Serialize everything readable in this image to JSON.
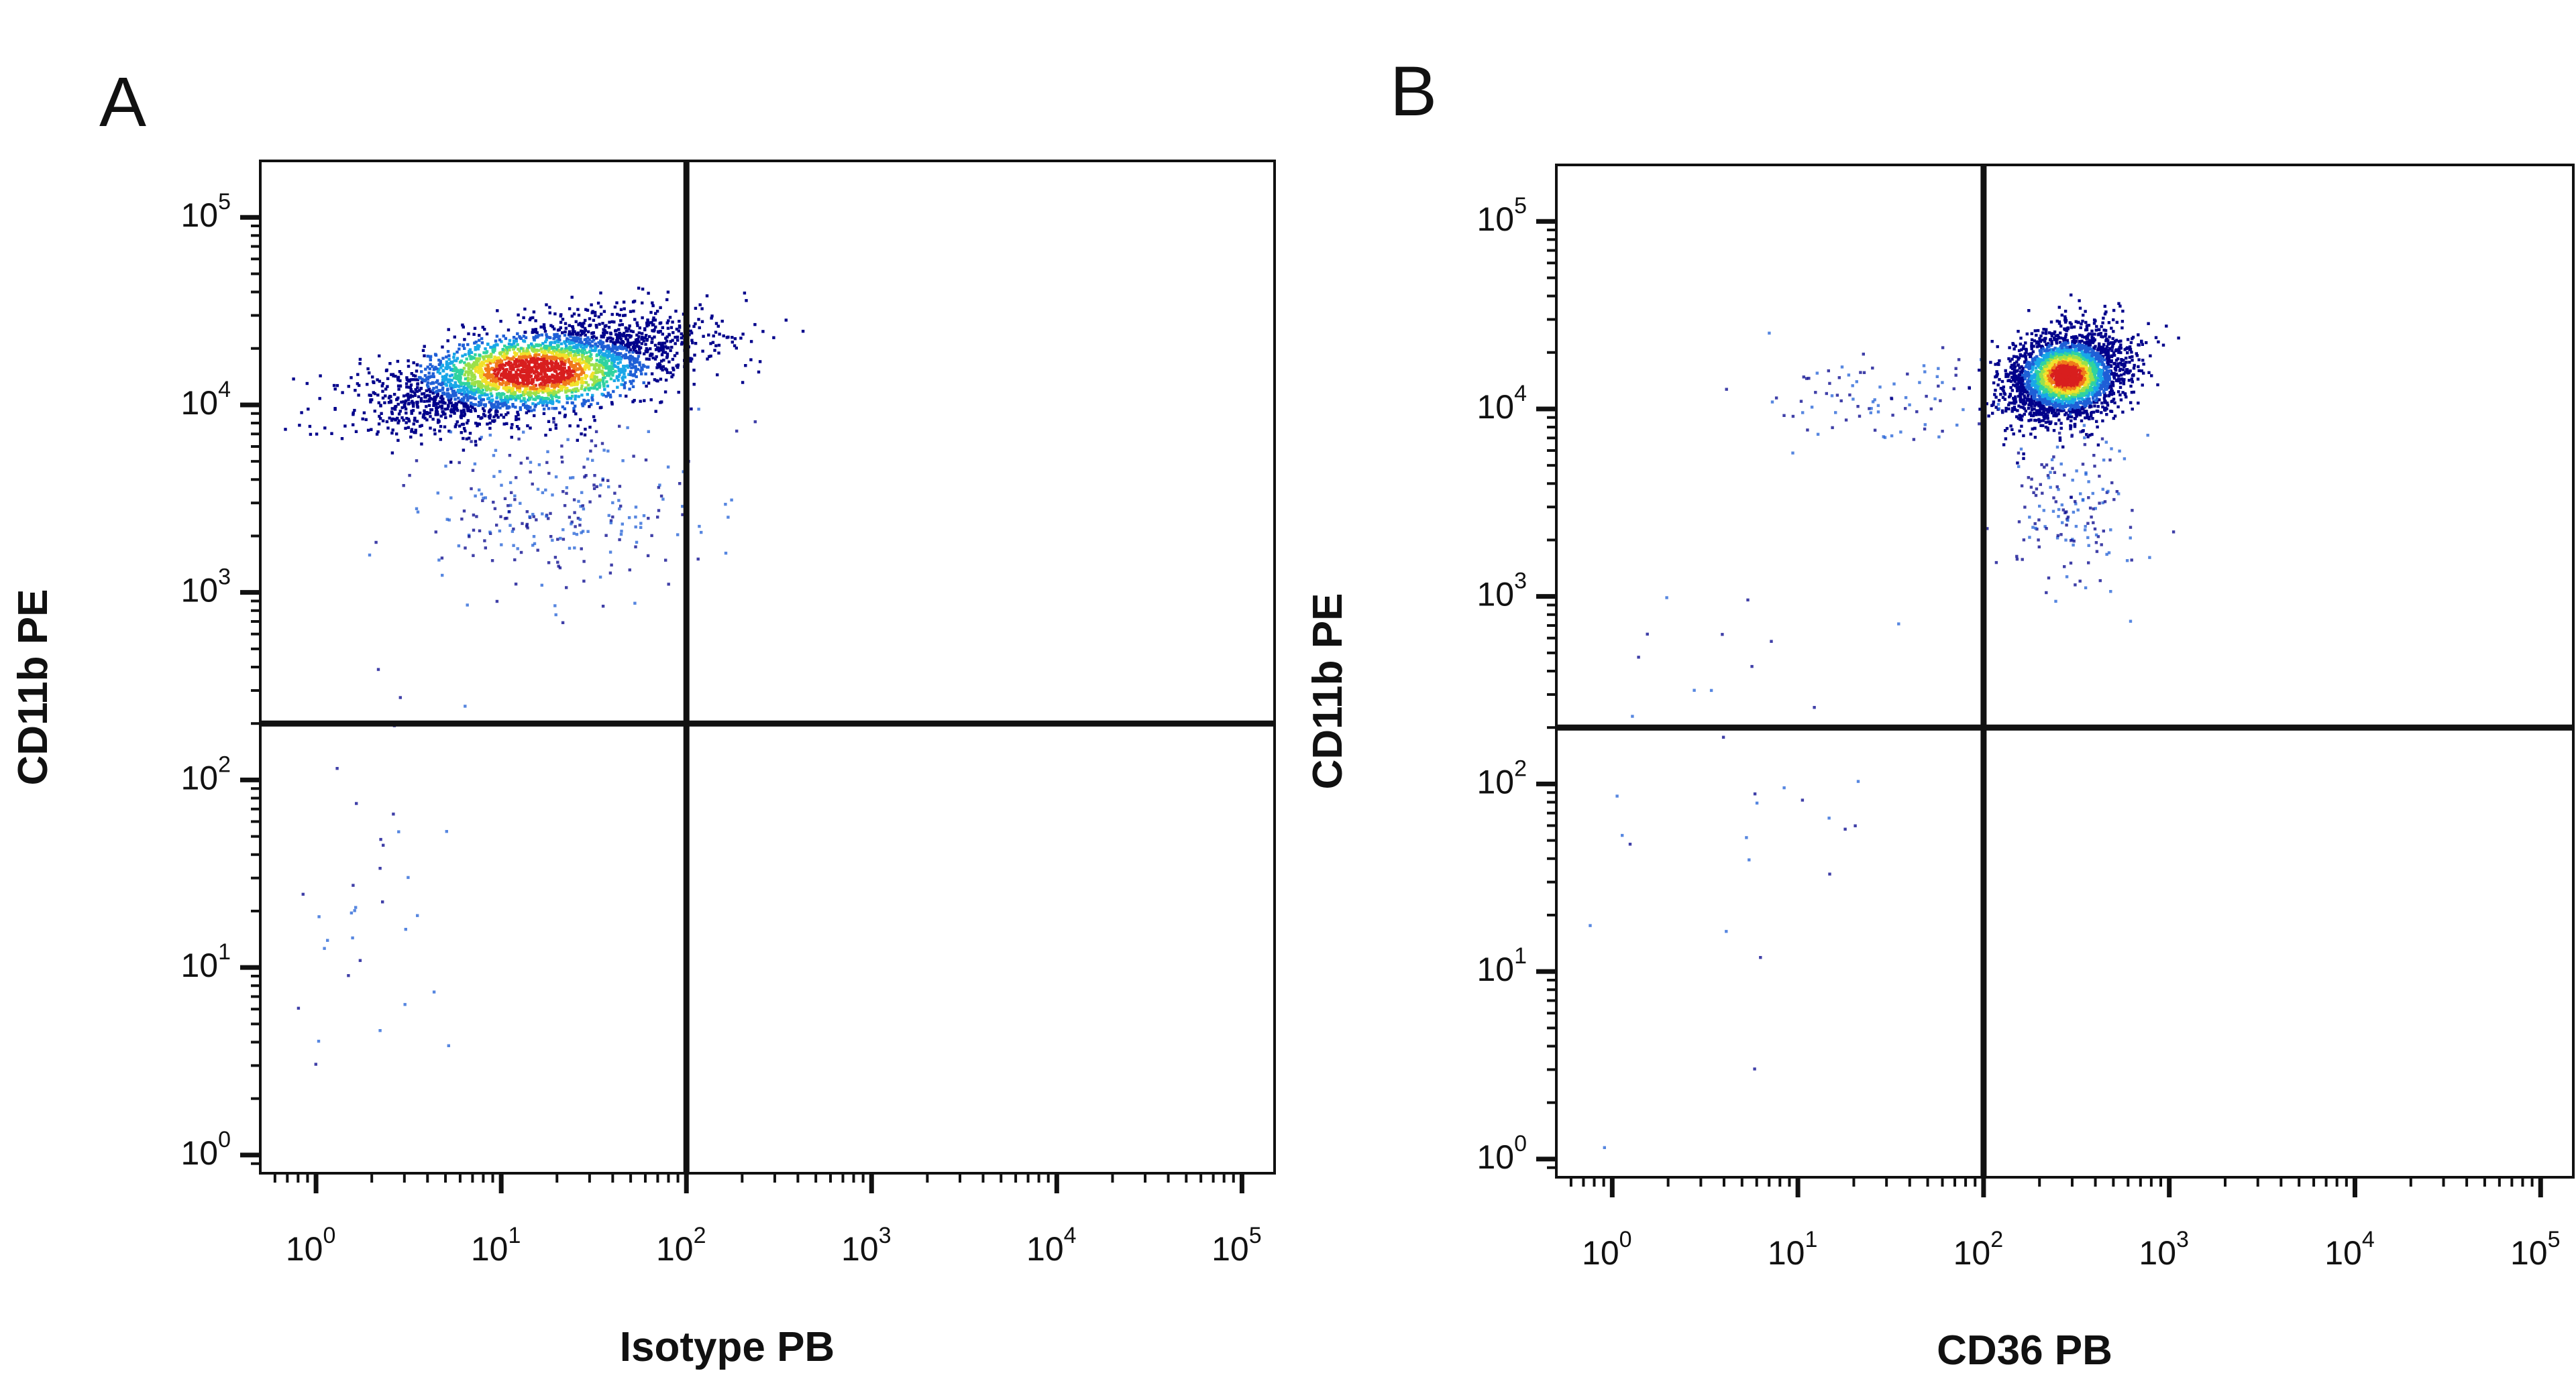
{
  "chart_data": [
    {
      "type": "scatter",
      "panel_label": "A",
      "title": "",
      "xlabel": "Isotype PB",
      "ylabel": "CD11b PE",
      "x_scale": "log",
      "y_scale": "log",
      "xlim": [
        0.5,
        150000
      ],
      "ylim": [
        0.8,
        200000
      ],
      "x_ticks": [
        {
          "base": "10",
          "exp": "0",
          "value": 1
        },
        {
          "base": "10",
          "exp": "1",
          "value": 10
        },
        {
          "base": "10",
          "exp": "2",
          "value": 100
        },
        {
          "base": "10",
          "exp": "3",
          "value": 1000
        },
        {
          "base": "10",
          "exp": "4",
          "value": 10000
        },
        {
          "base": "10",
          "exp": "5",
          "value": 100000
        }
      ],
      "y_ticks": [
        {
          "base": "10",
          "exp": "0",
          "value": 1
        },
        {
          "base": "10",
          "exp": "1",
          "value": 10
        },
        {
          "base": "10",
          "exp": "2",
          "value": 100
        },
        {
          "base": "10",
          "exp": "3",
          "value": 1000
        },
        {
          "base": "10",
          "exp": "4",
          "value": 10000
        },
        {
          "base": "10",
          "exp": "5",
          "value": 100000
        }
      ],
      "quadrant_gate": {
        "x": 100,
        "y": 200
      },
      "grid": false,
      "legend": "none",
      "density_colormap": [
        "#00008b",
        "#1f5fd6",
        "#19a7e8",
        "#2fd3a0",
        "#9be04a",
        "#f2e12a",
        "#f07a1a",
        "#d81e1e"
      ],
      "populations": [
        {
          "name": "",
          "cx": 15,
          "cy": 15000,
          "sx_log": 0.42,
          "sy_log": 0.14,
          "rho": 0.55,
          "n": 3200
        },
        {
          "name": "",
          "cx": 20,
          "cy": 3000,
          "sx_log": 0.38,
          "sy_log": 0.22,
          "rho": 0,
          "n": 260
        },
        {
          "name": "",
          "cx": 2,
          "cy": 20,
          "sx_log": 0.2,
          "sy_log": 0.75,
          "rho": 0,
          "n": 35
        }
      ]
    },
    {
      "type": "scatter",
      "panel_label": "B",
      "title": "",
      "xlabel": "CD36 PB",
      "ylabel": "CD11b PE",
      "x_scale": "log",
      "y_scale": "log",
      "xlim": [
        0.5,
        150000
      ],
      "ylim": [
        0.8,
        200000
      ],
      "x_ticks": [
        {
          "base": "10",
          "exp": "0",
          "value": 1
        },
        {
          "base": "10",
          "exp": "1",
          "value": 10
        },
        {
          "base": "10",
          "exp": "2",
          "value": 100
        },
        {
          "base": "10",
          "exp": "3",
          "value": 1000
        },
        {
          "base": "10",
          "exp": "4",
          "value": 10000
        },
        {
          "base": "10",
          "exp": "5",
          "value": 100000
        }
      ],
      "y_ticks": [
        {
          "base": "10",
          "exp": "0",
          "value": 1
        },
        {
          "base": "10",
          "exp": "1",
          "value": 10
        },
        {
          "base": "10",
          "exp": "2",
          "value": 100
        },
        {
          "base": "10",
          "exp": "3",
          "value": 1000
        },
        {
          "base": "10",
          "exp": "4",
          "value": 10000
        },
        {
          "base": "10",
          "exp": "5",
          "value": 100000
        }
      ],
      "quadrant_gate": {
        "x": 100,
        "y": 200
      },
      "grid": false,
      "legend": "none",
      "density_colormap": [
        "#00008b",
        "#1f5fd6",
        "#19a7e8",
        "#2fd3a0",
        "#9be04a",
        "#f2e12a",
        "#f07a1a",
        "#d81e1e"
      ],
      "populations": [
        {
          "name": "",
          "cx": 280,
          "cy": 15000,
          "sx_log": 0.16,
          "sy_log": 0.12,
          "rho": 0.2,
          "n": 2800
        },
        {
          "name": "",
          "cx": 300,
          "cy": 3000,
          "sx_log": 0.18,
          "sy_log": 0.22,
          "rho": 0,
          "n": 160
        },
        {
          "name": "",
          "cx": 30,
          "cy": 12000,
          "sx_log": 0.32,
          "sy_log": 0.15,
          "rho": 0,
          "n": 90
        },
        {
          "name": "",
          "cx": 5,
          "cy": 100,
          "sx_log": 0.55,
          "sy_log": 0.8,
          "rho": 0,
          "n": 35
        }
      ]
    }
  ]
}
